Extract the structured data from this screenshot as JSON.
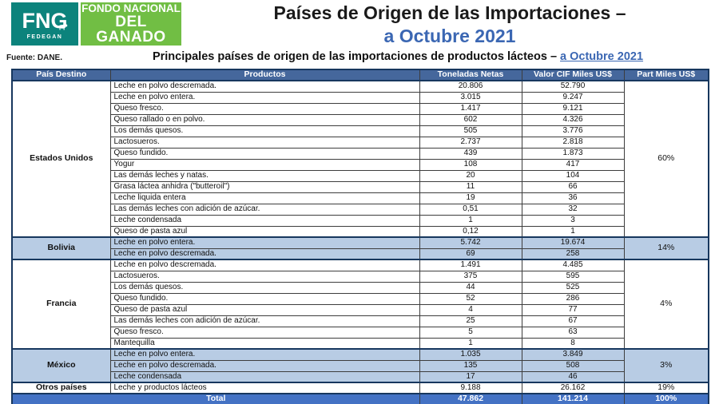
{
  "logo": {
    "acronym": "FNG",
    "fedegan": "FEDEGAN",
    "name_line1": "FONDO NACIONAL",
    "name_line2": "DEL GANADO"
  },
  "colors": {
    "header_bg": "#45679C",
    "total_bg": "#4472C4",
    "highlight_bg": "#B8CCE4",
    "border_dark": "#17375E",
    "title_blue": "#3B67B3",
    "logo_teal": "#0C837C",
    "logo_green": "#71BE44"
  },
  "source": "Fuente: DANE.",
  "title": {
    "line1": "Países de Origen de las Importaciones –",
    "line2": "a Octubre 2021"
  },
  "subtitle": {
    "prefix": "Principales países de origen de las importaciones de productos lácteos – ",
    "highlight": "a Octubre 2021"
  },
  "table": {
    "headers": [
      "País  Destino",
      "Productos",
      "Toneladas Netas",
      "Valor  CIF Miles US$",
      "Part Miles US$"
    ],
    "groups": [
      {
        "country": "Estados Unidos",
        "part": "60%",
        "highlight": false,
        "rows": [
          [
            "Leche en polvo descremada.",
            "20.806",
            "52.790"
          ],
          [
            "Leche en polvo entera.",
            "3.015",
            "9.247"
          ],
          [
            "Queso fresco.",
            "1.417",
            "9.121"
          ],
          [
            "Queso rallado o en polvo.",
            "602",
            "4.326"
          ],
          [
            "Los demás quesos.",
            "505",
            "3.776"
          ],
          [
            "Lactosueros.",
            "2.737",
            "2.818"
          ],
          [
            "Queso fundido.",
            "439",
            "1.873"
          ],
          [
            "Yogur",
            "108",
            "417"
          ],
          [
            "Las demás leches y natas.",
            "20",
            "104"
          ],
          [
            "Grasa láctea anhidra (\"butteroil\")",
            "11",
            "66"
          ],
          [
            "Leche liquida entera",
            "19",
            "36"
          ],
          [
            "Las demás leches con adición de azúcar.",
            "0,51",
            "32"
          ],
          [
            "Leche condensada",
            "1",
            "3"
          ],
          [
            "Queso de pasta azul",
            "0,12",
            "1"
          ]
        ]
      },
      {
        "country": "Bolivia",
        "part": "14%",
        "highlight": true,
        "rows": [
          [
            "Leche en polvo entera.",
            "5.742",
            "19.674"
          ],
          [
            "Leche en polvo descremada.",
            "69",
            "258"
          ]
        ]
      },
      {
        "country": "Francia",
        "part": "4%",
        "highlight": false,
        "rows": [
          [
            "Leche en polvo descremada.",
            "1.491",
            "4.485"
          ],
          [
            "Lactosueros.",
            "375",
            "595"
          ],
          [
            "Los demás quesos.",
            "44",
            "525"
          ],
          [
            "Queso fundido.",
            "52",
            "286"
          ],
          [
            "Queso de pasta azul",
            "4",
            "77"
          ],
          [
            "Las demás leches con adición de azúcar.",
            "25",
            "67"
          ],
          [
            "Queso fresco.",
            "5",
            "63"
          ],
          [
            "Mantequilla",
            "1",
            "8"
          ]
        ]
      },
      {
        "country": "México",
        "part": "3%",
        "highlight": true,
        "rows": [
          [
            "Leche en polvo entera.",
            "1.035",
            "3.849"
          ],
          [
            "Leche en polvo descremada.",
            "135",
            "508"
          ],
          [
            "Leche condensada",
            "17",
            "46"
          ]
        ]
      },
      {
        "country": "Otros países",
        "part": "19%",
        "highlight": false,
        "rows": [
          [
            "Leche y productos  lácteos",
            "9.188",
            "26.162"
          ]
        ]
      }
    ],
    "total": {
      "label": "Total",
      "toneladas": "47.862",
      "valor": "141.214",
      "part": "100%"
    }
  }
}
